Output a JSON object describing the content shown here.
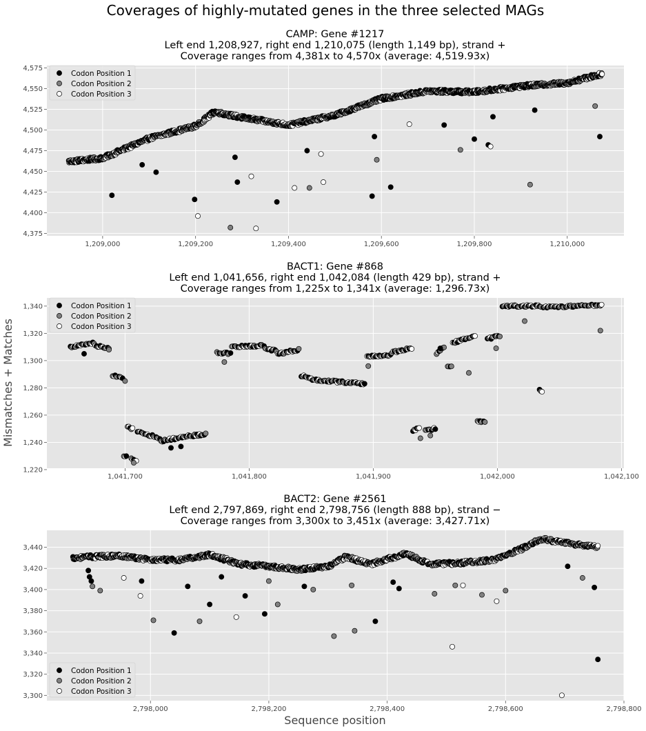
{
  "figure": {
    "suptitle": "Coverages of highly-mutated genes in the three selected MAGs",
    "ylabel": "Mismatches + Matches",
    "xlabel": "Sequence position"
  },
  "colors": {
    "panel_bg": "#e5e5e5",
    "grid": "#ffffff",
    "marker_edge": "#000000",
    "codon1": "#000000",
    "codon2": "#808080",
    "codon3": "#ffffff"
  },
  "chart_data": [
    {
      "type": "scatter",
      "title": [
        "CAMP: Gene #1217",
        "Left end 1,208,927, right end 1,210,075 (length 1,149 bp), strand +",
        "Coverage ranges from 4,381x to 4,570x (average: 4,519.93x)"
      ],
      "xlim": [
        1208880,
        1210122
      ],
      "ylim": [
        4372,
        4578
      ],
      "xticks": [
        1209000,
        1209200,
        1209400,
        1209600,
        1209800,
        1210000
      ],
      "xtick_labels": [
        "1,209,000",
        "1,209,200",
        "1,209,400",
        "1,209,600",
        "1,209,800",
        "1,210,000"
      ],
      "yticks": [
        4375,
        4400,
        4425,
        4450,
        4475,
        4500,
        4525,
        4550,
        4575
      ],
      "ytick_labels": [
        "4,375",
        "4,400",
        "4,425",
        "4,450",
        "4,475",
        "4,500",
        "4,525",
        "4,550",
        "4,575"
      ],
      "legend_position": "top-left",
      "gene": {
        "start": 1208927,
        "end": 1210075
      },
      "trend": [
        [
          1208927,
          4462
        ],
        [
          1209000,
          4466
        ],
        [
          1209100,
          4490
        ],
        [
          1209200,
          4505
        ],
        [
          1209240,
          4522
        ],
        [
          1209300,
          4515
        ],
        [
          1209400,
          4506
        ],
        [
          1209500,
          4518
        ],
        [
          1209600,
          4538
        ],
        [
          1209700,
          4547
        ],
        [
          1209800,
          4546
        ],
        [
          1209900,
          4553
        ],
        [
          1210000,
          4557
        ],
        [
          1210075,
          4568
        ]
      ],
      "outliers": [
        {
          "x": 1209020,
          "y": 4421,
          "pos": 1
        },
        {
          "x": 1209085,
          "y": 4458,
          "pos": 1
        },
        {
          "x": 1209115,
          "y": 4449,
          "pos": 1
        },
        {
          "x": 1209198,
          "y": 4416,
          "pos": 1
        },
        {
          "x": 1209205,
          "y": 4396,
          "pos": 3
        },
        {
          "x": 1209275,
          "y": 4382,
          "pos": 2
        },
        {
          "x": 1209285,
          "y": 4467,
          "pos": 1
        },
        {
          "x": 1209290,
          "y": 4437,
          "pos": 1
        },
        {
          "x": 1209320,
          "y": 4444,
          "pos": 3
        },
        {
          "x": 1209330,
          "y": 4381,
          "pos": 3
        },
        {
          "x": 1209375,
          "y": 4413,
          "pos": 1
        },
        {
          "x": 1209413,
          "y": 4430,
          "pos": 3
        },
        {
          "x": 1209440,
          "y": 4475,
          "pos": 1
        },
        {
          "x": 1209445,
          "y": 4430,
          "pos": 2
        },
        {
          "x": 1209470,
          "y": 4471,
          "pos": 3
        },
        {
          "x": 1209475,
          "y": 4437,
          "pos": 3
        },
        {
          "x": 1209580,
          "y": 4420,
          "pos": 1
        },
        {
          "x": 1209585,
          "y": 4492,
          "pos": 1
        },
        {
          "x": 1209590,
          "y": 4464,
          "pos": 2
        },
        {
          "x": 1209620,
          "y": 4431,
          "pos": 1
        },
        {
          "x": 1209660,
          "y": 4507,
          "pos": 3
        },
        {
          "x": 1209735,
          "y": 4506,
          "pos": 1
        },
        {
          "x": 1209770,
          "y": 4476,
          "pos": 2
        },
        {
          "x": 1209800,
          "y": 4489,
          "pos": 1
        },
        {
          "x": 1209830,
          "y": 4482,
          "pos": 1
        },
        {
          "x": 1209835,
          "y": 4480,
          "pos": 3
        },
        {
          "x": 1209840,
          "y": 4516,
          "pos": 1
        },
        {
          "x": 1209920,
          "y": 4434,
          "pos": 2
        },
        {
          "x": 1209930,
          "y": 4524,
          "pos": 1
        },
        {
          "x": 1210060,
          "y": 4529,
          "pos": 2
        },
        {
          "x": 1210070,
          "y": 4492,
          "pos": 1
        }
      ]
    },
    {
      "type": "scatter",
      "title": [
        "BACT1: Gene #868",
        "Left end 1,041,656, right end 1,042,084 (length 429 bp), strand +",
        "Coverage ranges from 1,225x to 1,341x (average: 1,296.73x)"
      ],
      "xlim": [
        1041637,
        1042102
      ],
      "ylim": [
        1221,
        1346
      ],
      "xticks": [
        1041700,
        1041800,
        1041900,
        1042000,
        1042100
      ],
      "xtick_labels": [
        "1,041,700",
        "1,041,800",
        "1,041,900",
        "1,042,000",
        "1,042,100"
      ],
      "yticks": [
        1220,
        1240,
        1260,
        1280,
        1300,
        1320,
        1340
      ],
      "ytick_labels": [
        "1,220",
        "1,240",
        "1,260",
        "1,280",
        "1,300",
        "1,320",
        "1,340"
      ],
      "legend_position": "top-left",
      "segments": [
        [
          1041656,
          1041675,
          1310,
          1313
        ],
        [
          1041676,
          1041687,
          1311,
          1309
        ],
        [
          1041690,
          1041698,
          1289,
          1287
        ],
        [
          1041699,
          1041701,
          1230,
          1230
        ],
        [
          1041702,
          1041706,
          1251,
          1250
        ],
        [
          1041705,
          1041709,
          1228,
          1227
        ],
        [
          1041710,
          1041728,
          1248,
          1243
        ],
        [
          1041729,
          1041753,
          1241,
          1245
        ],
        [
          1041755,
          1041765,
          1245,
          1246
        ],
        [
          1041774,
          1041785,
          1306,
          1305
        ],
        [
          1041786,
          1041812,
          1310,
          1311
        ],
        [
          1041813,
          1041822,
          1309,
          1307
        ],
        [
          1041823,
          1041840,
          1305,
          1308
        ],
        [
          1041842,
          1041850,
          1289,
          1287
        ],
        [
          1041851,
          1041893,
          1286,
          1283
        ],
        [
          1041895,
          1041914,
          1303,
          1304
        ],
        [
          1041915,
          1041931,
          1306,
          1309
        ],
        [
          1041932,
          1041937,
          1249,
          1250
        ],
        [
          1041942,
          1041950,
          1249,
          1250
        ],
        [
          1041951,
          1041957,
          1305,
          1310
        ],
        [
          1041960,
          1041963,
          1296,
          1296
        ],
        [
          1041964,
          1041982,
          1313,
          1318
        ],
        [
          1041984,
          1041990,
          1255,
          1255
        ],
        [
          1041992,
          1042002,
          1316,
          1318
        ],
        [
          1042004,
          1042035,
          1340,
          1340
        ],
        [
          1042034,
          1042036,
          1278,
          1277
        ],
        [
          1042037,
          1042084,
          1339,
          1341
        ]
      ],
      "outliers": [
        {
          "x": 1041667,
          "y": 1305,
          "pos": 1
        },
        {
          "x": 1041687,
          "y": 1308,
          "pos": 2
        },
        {
          "x": 1041700,
          "y": 1285,
          "pos": 2
        },
        {
          "x": 1041707,
          "y": 1225,
          "pos": 2
        },
        {
          "x": 1041737,
          "y": 1236,
          "pos": 1
        },
        {
          "x": 1041745,
          "y": 1237,
          "pos": 1
        },
        {
          "x": 1041780,
          "y": 1299,
          "pos": 2
        },
        {
          "x": 1041896,
          "y": 1296,
          "pos": 2
        },
        {
          "x": 1041938,
          "y": 1243,
          "pos": 2
        },
        {
          "x": 1041946,
          "y": 1245,
          "pos": 2
        },
        {
          "x": 1041954,
          "y": 1309,
          "pos": 1
        },
        {
          "x": 1041977,
          "y": 1291,
          "pos": 2
        },
        {
          "x": 1041999,
          "y": 1309,
          "pos": 2
        },
        {
          "x": 1042022,
          "y": 1329,
          "pos": 2
        },
        {
          "x": 1042083,
          "y": 1322,
          "pos": 2
        }
      ]
    },
    {
      "type": "scatter",
      "title": [
        "BACT2: Gene #2561",
        "Left end 2,797,869, right end 2,798,756 (length 888 bp), strand −",
        "Coverage ranges from 3,300x to 3,451x (average: 3,427.71x)"
      ],
      "xlim": [
        2797825,
        2798800
      ],
      "ylim": [
        3295,
        3456
      ],
      "xticks": [
        2798000,
        2798200,
        2798400,
        2798600,
        2798800
      ],
      "xtick_labels": [
        "2,798,000",
        "2,798,200",
        "2,798,400",
        "2,798,600",
        "2,798,800"
      ],
      "yticks": [
        3300,
        3320,
        3340,
        3360,
        3380,
        3400,
        3420,
        3440
      ],
      "ytick_labels": [
        "3,300",
        "3,320",
        "3,340",
        "3,360",
        "3,380",
        "3,400",
        "3,420",
        "3,440"
      ],
      "legend_position": "bottom-left",
      "gene": {
        "start": 2797869,
        "end": 2798756
      },
      "trend": [
        [
          2797869,
          3430
        ],
        [
          2797900,
          3431
        ],
        [
          2797950,
          3432
        ],
        [
          2798000,
          3428
        ],
        [
          2798050,
          3428
        ],
        [
          2798100,
          3433
        ],
        [
          2798150,
          3424
        ],
        [
          2798200,
          3422
        ],
        [
          2798250,
          3419
        ],
        [
          2798300,
          3422
        ],
        [
          2798330,
          3431
        ],
        [
          2798370,
          3424
        ],
        [
          2798430,
          3434
        ],
        [
          2798470,
          3424
        ],
        [
          2798520,
          3425
        ],
        [
          2798580,
          3428
        ],
        [
          2798620,
          3437
        ],
        [
          2798660,
          3448
        ],
        [
          2798700,
          3444
        ],
        [
          2798756,
          3440
        ]
      ],
      "outliers": [
        {
          "x": 2797895,
          "y": 3418,
          "pos": 1
        },
        {
          "x": 2797897,
          "y": 3412,
          "pos": 1
        },
        {
          "x": 2797900,
          "y": 3408,
          "pos": 1
        },
        {
          "x": 2797902,
          "y": 3403,
          "pos": 2
        },
        {
          "x": 2797915,
          "y": 3399,
          "pos": 2
        },
        {
          "x": 2797955,
          "y": 3411,
          "pos": 3
        },
        {
          "x": 2797983,
          "y": 3394,
          "pos": 3
        },
        {
          "x": 2797985,
          "y": 3408,
          "pos": 1
        },
        {
          "x": 2798005,
          "y": 3371,
          "pos": 2
        },
        {
          "x": 2798040,
          "y": 3359,
          "pos": 1
        },
        {
          "x": 2798063,
          "y": 3403,
          "pos": 1
        },
        {
          "x": 2798083,
          "y": 3370,
          "pos": 2
        },
        {
          "x": 2798100,
          "y": 3386,
          "pos": 1
        },
        {
          "x": 2798120,
          "y": 3412,
          "pos": 1
        },
        {
          "x": 2798145,
          "y": 3374,
          "pos": 3
        },
        {
          "x": 2798160,
          "y": 3394,
          "pos": 1
        },
        {
          "x": 2798193,
          "y": 3377,
          "pos": 1
        },
        {
          "x": 2798200,
          "y": 3408,
          "pos": 2
        },
        {
          "x": 2798215,
          "y": 3386,
          "pos": 2
        },
        {
          "x": 2798260,
          "y": 3403,
          "pos": 1
        },
        {
          "x": 2798275,
          "y": 3400,
          "pos": 2
        },
        {
          "x": 2798310,
          "y": 3356,
          "pos": 2
        },
        {
          "x": 2798340,
          "y": 3404,
          "pos": 2
        },
        {
          "x": 2798345,
          "y": 3361,
          "pos": 2
        },
        {
          "x": 2798380,
          "y": 3370,
          "pos": 1
        },
        {
          "x": 2798410,
          "y": 3407,
          "pos": 1
        },
        {
          "x": 2798420,
          "y": 3401,
          "pos": 1
        },
        {
          "x": 2798480,
          "y": 3396,
          "pos": 2
        },
        {
          "x": 2798510,
          "y": 3346,
          "pos": 3
        },
        {
          "x": 2798515,
          "y": 3404,
          "pos": 2
        },
        {
          "x": 2798528,
          "y": 3404,
          "pos": 3
        },
        {
          "x": 2798560,
          "y": 3395,
          "pos": 2
        },
        {
          "x": 2798585,
          "y": 3389,
          "pos": 3
        },
        {
          "x": 2798600,
          "y": 3399,
          "pos": 2
        },
        {
          "x": 2798695,
          "y": 3300,
          "pos": 3
        },
        {
          "x": 2798705,
          "y": 3422,
          "pos": 1
        },
        {
          "x": 2798730,
          "y": 3411,
          "pos": 2
        },
        {
          "x": 2798750,
          "y": 3402,
          "pos": 1
        },
        {
          "x": 2798756,
          "y": 3334,
          "pos": 1
        }
      ]
    }
  ],
  "legend": {
    "entries": [
      {
        "label": "Codon Position 1",
        "pos": 1
      },
      {
        "label": "Codon Position 2",
        "pos": 2
      },
      {
        "label": "Codon Position 3",
        "pos": 3
      }
    ]
  }
}
